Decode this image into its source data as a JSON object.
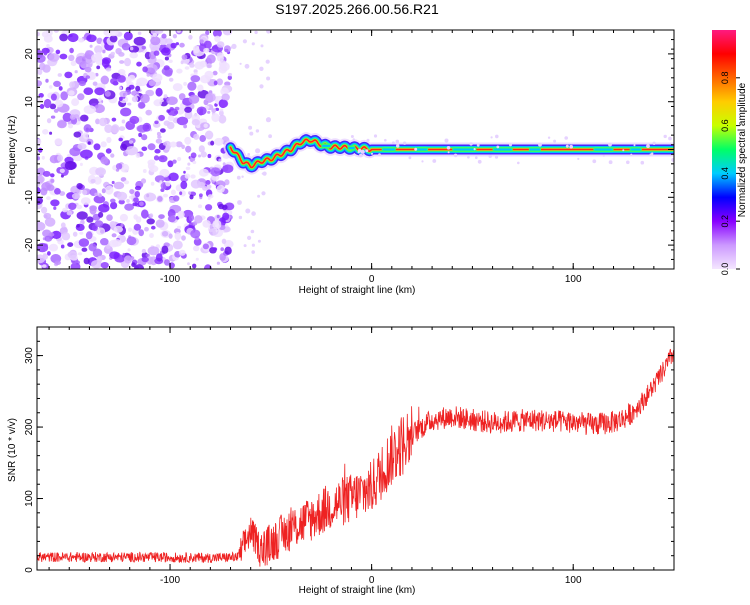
{
  "title": "S197.2025.266.00.56.R21",
  "chart_data": [
    {
      "type": "heatmap",
      "xlabel": "Height of straight line (km)",
      "ylabel": "Frequency (Hz)",
      "xlim": [
        -166,
        150
      ],
      "ylim": [
        -25,
        25
      ],
      "xticks": [
        -100,
        0,
        100
      ],
      "yticks": [
        -20,
        -10,
        0,
        10,
        20
      ],
      "noise_region_x": [
        -166,
        -70
      ],
      "ridge": {
        "x": [
          -70,
          -67,
          -64,
          -60,
          -55,
          -50,
          -45,
          -40,
          -35,
          -30,
          -25,
          -20,
          -15,
          -10,
          -5,
          0,
          30,
          60,
          90,
          120,
          150
        ],
        "y": [
          0.5,
          -1.0,
          -2.5,
          -3.5,
          -2.5,
          -2.0,
          -1.0,
          0.0,
          1.5,
          2.0,
          1.0,
          0.5,
          0.5,
          0.3,
          0.2,
          0.0,
          0.0,
          0.0,
          0.0,
          0.0,
          0.0
        ]
      },
      "colorbar": {
        "label": "Normalized spectral amplitude",
        "range": [
          0,
          1
        ],
        "ticks": [
          "0.0",
          "0.2",
          "0.4",
          "0.6",
          "0.8"
        ],
        "colors": [
          "#f4e6ff",
          "#cc99ff",
          "#8800ff",
          "#0000ff",
          "#00ccff",
          "#00ff66",
          "#c8ff00",
          "#ffcc00",
          "#ff6600",
          "#ff0000",
          "#ff1a80"
        ]
      }
    },
    {
      "type": "line",
      "xlabel": "Height of straight line (km)",
      "ylabel": "SNR (10 * v/v)",
      "xlim": [
        -166,
        150
      ],
      "ylim": [
        0,
        340
      ],
      "xticks": [
        -100,
        0,
        100
      ],
      "yticks": [
        0,
        100,
        200,
        300
      ],
      "series_color": "#ee2222",
      "trend": {
        "x": [
          -166,
          -120,
          -80,
          -66,
          -60,
          -55,
          -50,
          -40,
          -30,
          -20,
          -10,
          0,
          10,
          20,
          25,
          30,
          40,
          50,
          60,
          70,
          80,
          90,
          100,
          110,
          120,
          125,
          130,
          135,
          140,
          145,
          150
        ],
        "y": [
          18,
          18,
          17,
          18,
          55,
          28,
          38,
          58,
          72,
          90,
          100,
          115,
          160,
          190,
          200,
          210,
          215,
          210,
          206,
          208,
          210,
          208,
          207,
          203,
          207,
          212,
          222,
          238,
          258,
          280,
          305
        ]
      }
    }
  ]
}
